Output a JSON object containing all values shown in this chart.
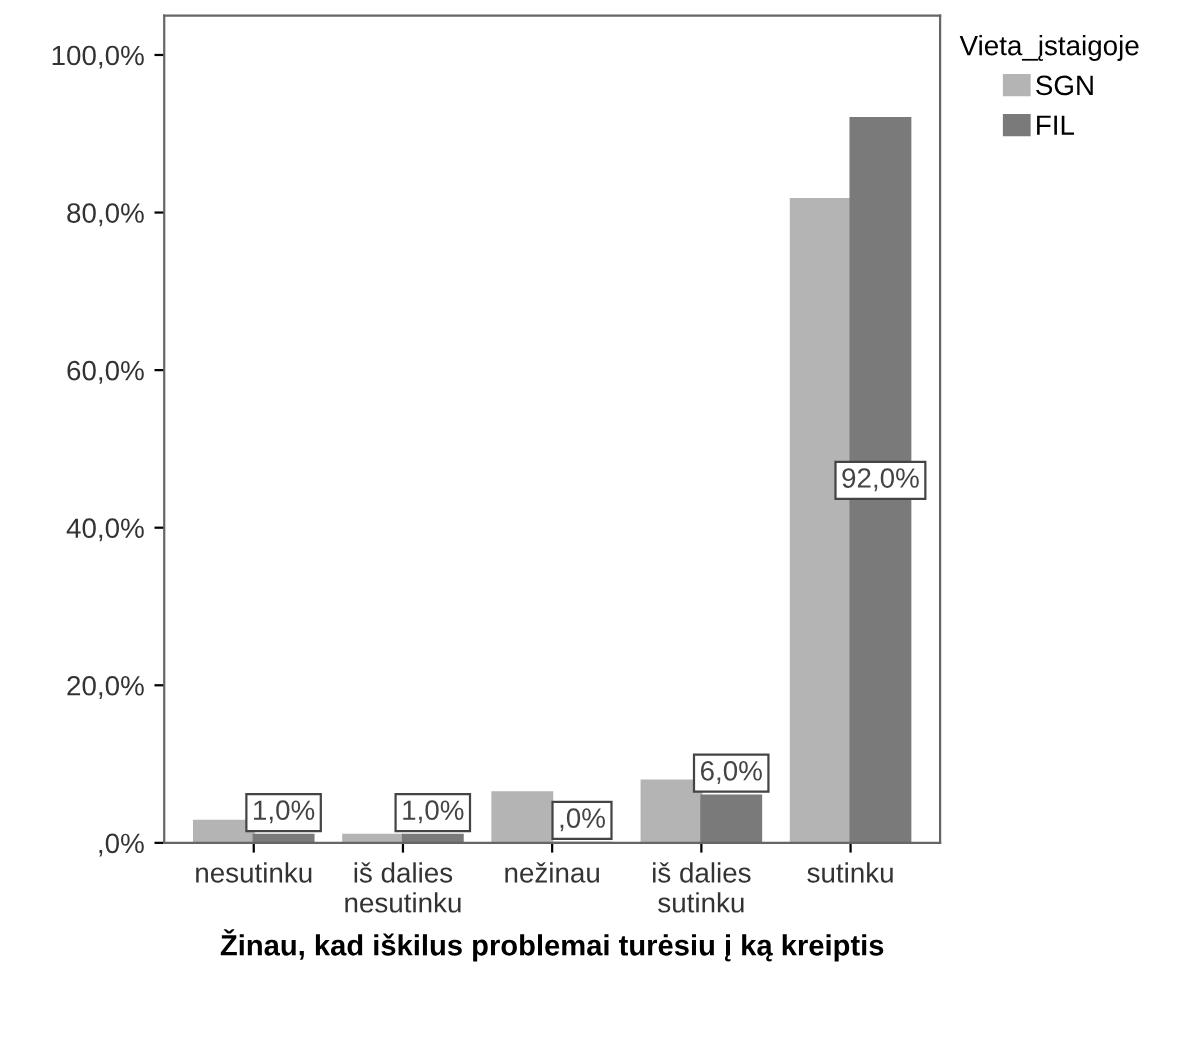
{
  "chart_data": {
    "type": "bar",
    "xlabel": "Žinau, kad iškilus problemai turėsiu į ką kreiptis",
    "legend_title": "Vieta_įstaigoje",
    "legend": "right",
    "categories": [
      "nesutinku",
      "iš dalies\nnesutinku",
      "nežinau",
      "iš dalies\nsutinku",
      "sutinku"
    ],
    "series": [
      {
        "name": "SGN",
        "color": "#b4b4b4",
        "values": [
          2.8,
          1.0,
          6.4,
          7.9,
          81.7
        ]
      },
      {
        "name": "FIL",
        "color": "#7a7a7a",
        "values": [
          1.0,
          1.0,
          0,
          6.0,
          92.0
        ],
        "value_labels": [
          "1,0%",
          "1,0%",
          ",0%",
          "6,0%",
          "92,0%"
        ]
      }
    ],
    "ylim": [
      0,
      105
    ],
    "yticks": [
      {
        "value": 0,
        "label": ",0%"
      },
      {
        "value": 20,
        "label": "20,0%"
      },
      {
        "value": 40,
        "label": "40,0%"
      },
      {
        "value": 60,
        "label": "60,0%"
      },
      {
        "value": 80,
        "label": "80,0%"
      },
      {
        "value": 100,
        "label": "100,0%"
      }
    ],
    "grid": false
  }
}
